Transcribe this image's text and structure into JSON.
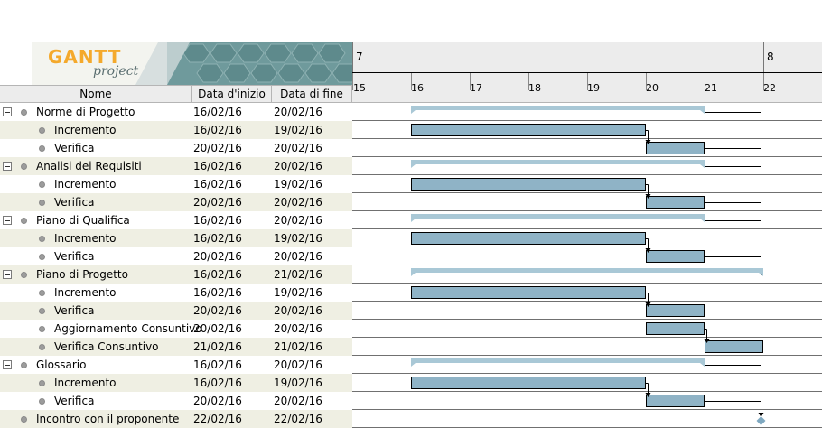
{
  "logo": {
    "word1": "GANTT",
    "word2": "project"
  },
  "columns": {
    "name": "Nome",
    "start": "Data d'inizio",
    "end": "Data di fine"
  },
  "timeline": {
    "weeks": [
      {
        "label": "7",
        "day": 15
      },
      {
        "label": "8",
        "day": 22
      }
    ],
    "days": [
      "15",
      "16",
      "17",
      "18",
      "19",
      "20",
      "21",
      "22"
    ]
  },
  "tasks": [
    {
      "name": "Norme di Progetto",
      "start": "16/02/16",
      "end": "20/02/16",
      "level": 0,
      "summary": true,
      "s": 16,
      "e": 21
    },
    {
      "name": "Incremento",
      "start": "16/02/16",
      "end": "19/02/16",
      "level": 1,
      "s": 16,
      "e": 20
    },
    {
      "name": "Verifica",
      "start": "20/02/16",
      "end": "20/02/16",
      "level": 1,
      "s": 20,
      "e": 21
    },
    {
      "name": "Analisi dei Requisiti",
      "start": "16/02/16",
      "end": "20/02/16",
      "level": 0,
      "summary": true,
      "s": 16,
      "e": 21
    },
    {
      "name": "Incremento",
      "start": "16/02/16",
      "end": "19/02/16",
      "level": 1,
      "s": 16,
      "e": 20
    },
    {
      "name": "Verifica",
      "start": "20/02/16",
      "end": "20/02/16",
      "level": 1,
      "s": 20,
      "e": 21
    },
    {
      "name": "Piano di Qualifica",
      "start": "16/02/16",
      "end": "20/02/16",
      "level": 0,
      "summary": true,
      "s": 16,
      "e": 21
    },
    {
      "name": "Incremento",
      "start": "16/02/16",
      "end": "19/02/16",
      "level": 1,
      "s": 16,
      "e": 20
    },
    {
      "name": "Verifica",
      "start": "20/02/16",
      "end": "20/02/16",
      "level": 1,
      "s": 20,
      "e": 21
    },
    {
      "name": "Piano di Progetto",
      "start": "16/02/16",
      "end": "21/02/16",
      "level": 0,
      "summary": true,
      "s": 16,
      "e": 22
    },
    {
      "name": "Incremento",
      "start": "16/02/16",
      "end": "19/02/16",
      "level": 1,
      "s": 16,
      "e": 20
    },
    {
      "name": "Verifica",
      "start": "20/02/16",
      "end": "20/02/16",
      "level": 1,
      "s": 20,
      "e": 21
    },
    {
      "name": "Aggiornamento Consuntivo",
      "start": "20/02/16",
      "end": "20/02/16",
      "level": 1,
      "s": 20,
      "e": 21
    },
    {
      "name": "Verifica Consuntivo",
      "start": "21/02/16",
      "end": "21/02/16",
      "level": 1,
      "s": 21,
      "e": 22
    },
    {
      "name": "Glossario",
      "start": "16/02/16",
      "end": "20/02/16",
      "level": 0,
      "summary": true,
      "s": 16,
      "e": 21
    },
    {
      "name": "Incremento",
      "start": "16/02/16",
      "end": "19/02/16",
      "level": 1,
      "s": 16,
      "e": 20
    },
    {
      "name": "Verifica",
      "start": "20/02/16",
      "end": "20/02/16",
      "level": 1,
      "s": 20,
      "e": 21
    },
    {
      "name": "Incontro con il proponente",
      "start": "22/02/16",
      "end": "22/02/16",
      "level": 0,
      "milestone": true,
      "s": 22,
      "e": 22
    }
  ],
  "colors": {
    "bar": "#8fb3c6",
    "summary": "#a9c8d6",
    "milestone": "#7fa8c0",
    "row_alt": "#efefe3"
  }
}
